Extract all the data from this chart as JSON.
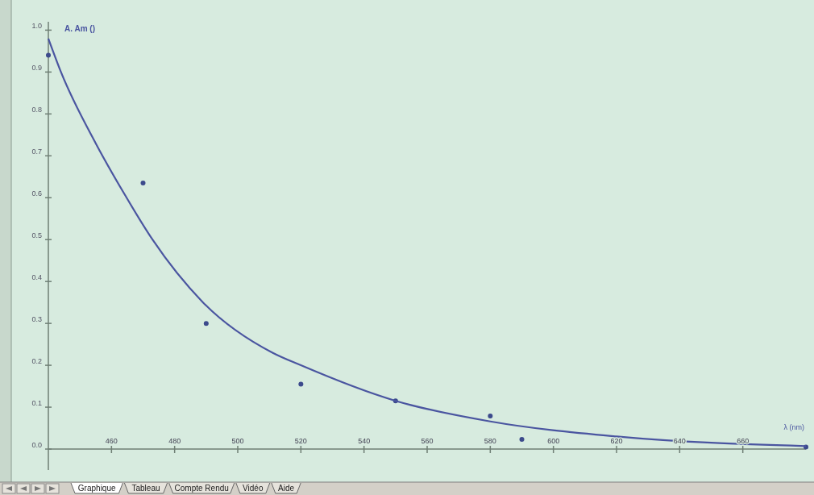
{
  "chart_data": {
    "type": "scatter",
    "ylabel": "A. Am ()",
    "xlabel": "λ (nm)",
    "xlim": [
      440,
      680
    ],
    "ylim": [
      -0.05,
      1.02
    ],
    "xticks": [
      460,
      480,
      500,
      520,
      540,
      560,
      580,
      600,
      620,
      640,
      660
    ],
    "yticks": [
      {
        "value": 0,
        "label": "0.0"
      },
      0.1,
      0.2,
      0.3,
      0.4,
      0.5,
      0.6,
      0.7,
      0.8,
      0.9,
      {
        "value": 1,
        "label": "1.0"
      }
    ],
    "grid": false,
    "marker": "circle",
    "series": [
      {
        "color": "#3c4a8c",
        "x": [
          440,
          470,
          490,
          520,
          550,
          580,
          590,
          680
        ],
        "values": [
          0.94,
          0.635,
          0.3,
          0.155,
          0.115,
          0.079,
          0.023,
          0.005
        ]
      },
      {
        "type": "line",
        "color": "#4a55a0",
        "marker": "none",
        "line_style": "solid",
        "x": [
          440,
          444,
          455,
          464,
          473,
          489,
          511,
          520,
          550,
          580,
          620,
          680
        ],
        "values": [
          0.98,
          0.9,
          0.73,
          0.61,
          0.5,
          0.35,
          0.23,
          0.2,
          0.115,
          0.066,
          0.03,
          0.007
        ]
      }
    ],
    "annotations": [
      "Graphique",
      "Tableau",
      "Compte Rendu",
      "Vidéo",
      "Aide"
    ]
  }
}
